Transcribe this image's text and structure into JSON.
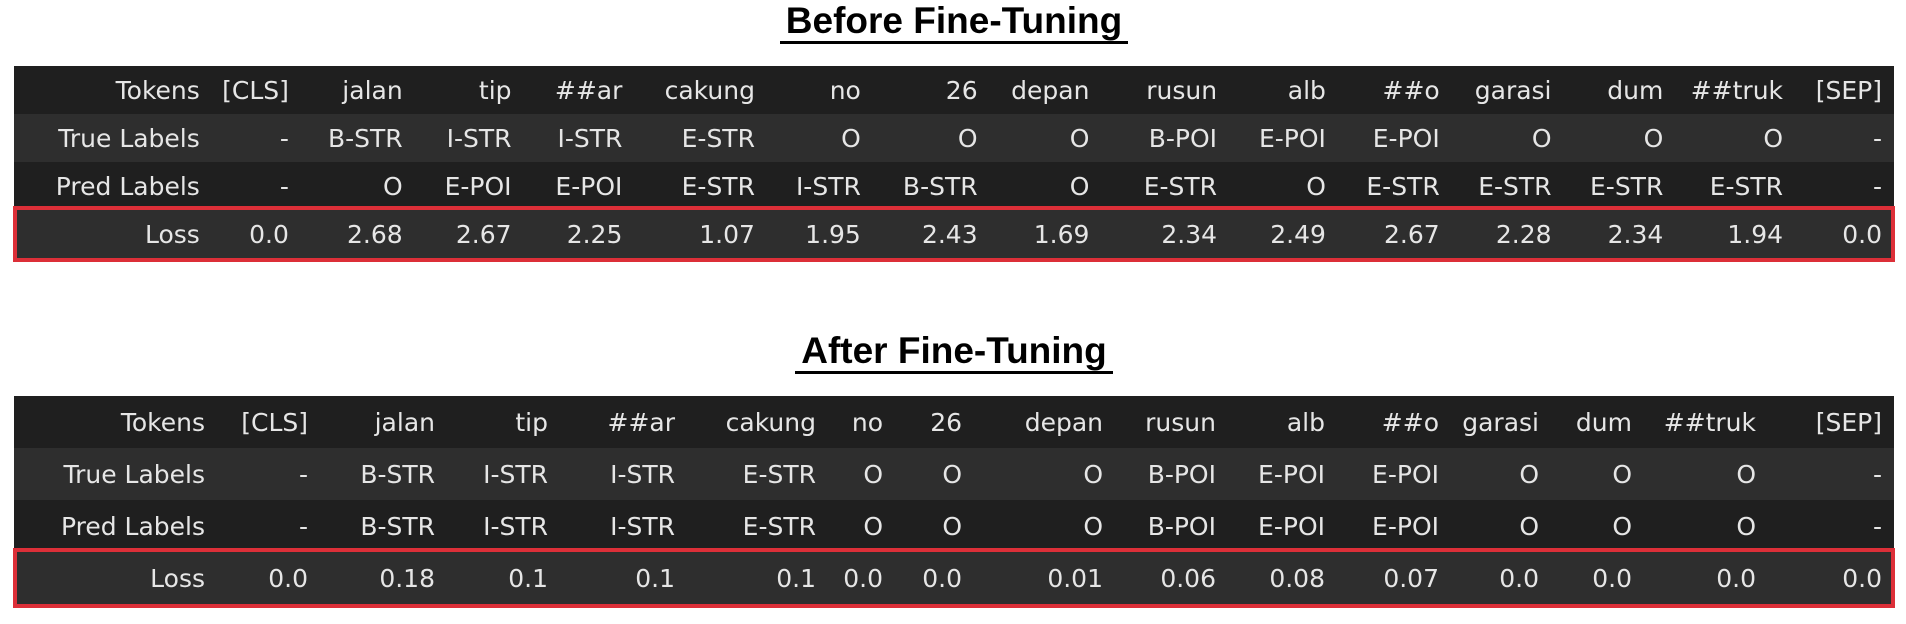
{
  "before": {
    "title": "Before Fine-Tuning",
    "rows": [
      {
        "label": "Tokens",
        "cells": [
          "[CLS]",
          "jalan",
          "tip",
          "##ar",
          "cakung",
          "no",
          "26",
          "depan",
          "rusun",
          "alb",
          "##o",
          "garasi",
          "dum",
          "##truk",
          "[SEP]"
        ]
      },
      {
        "label": "True Labels",
        "cells": [
          "-",
          "B-STR",
          "I-STR",
          "I-STR",
          "E-STR",
          "O",
          "O",
          "O",
          "B-POI",
          "E-POI",
          "E-POI",
          "O",
          "O",
          "O",
          "-"
        ]
      },
      {
        "label": "Pred Labels",
        "cells": [
          "-",
          "O",
          "E-POI",
          "E-POI",
          "E-STR",
          "I-STR",
          "B-STR",
          "O",
          "E-STR",
          "O",
          "E-STR",
          "E-STR",
          "E-STR",
          "E-STR",
          "-"
        ]
      },
      {
        "label": "Loss",
        "cells": [
          "0.0",
          "2.68",
          "2.67",
          "2.25",
          "1.07",
          "1.95",
          "2.43",
          "1.69",
          "2.34",
          "2.49",
          "2.67",
          "2.28",
          "2.34",
          "1.94",
          "0.0"
        ]
      }
    ]
  },
  "after": {
    "title": "After Fine-Tuning",
    "rows": [
      {
        "label": "Tokens",
        "cells": [
          "[CLS]",
          "jalan",
          "tip",
          "##ar",
          "cakung",
          "no",
          "26",
          "depan",
          "rusun",
          "alb",
          "##o",
          "garasi",
          "dum",
          "##truk",
          "[SEP]"
        ]
      },
      {
        "label": "True Labels",
        "cells": [
          "-",
          "B-STR",
          "I-STR",
          "I-STR",
          "E-STR",
          "O",
          "O",
          "O",
          "B-POI",
          "E-POI",
          "E-POI",
          "O",
          "O",
          "O",
          "-"
        ]
      },
      {
        "label": "Pred Labels",
        "cells": [
          "-",
          "B-STR",
          "I-STR",
          "I-STR",
          "E-STR",
          "O",
          "O",
          "O",
          "B-POI",
          "E-POI",
          "E-POI",
          "O",
          "O",
          "O",
          "-"
        ]
      },
      {
        "label": "Loss",
        "cells": [
          "0.0",
          "0.18",
          "0.1",
          "0.1",
          "0.1",
          "0.0",
          "0.0",
          "0.01",
          "0.06",
          "0.08",
          "0.07",
          "0.0",
          "0.0",
          "0.0",
          "0.0"
        ]
      }
    ]
  }
}
